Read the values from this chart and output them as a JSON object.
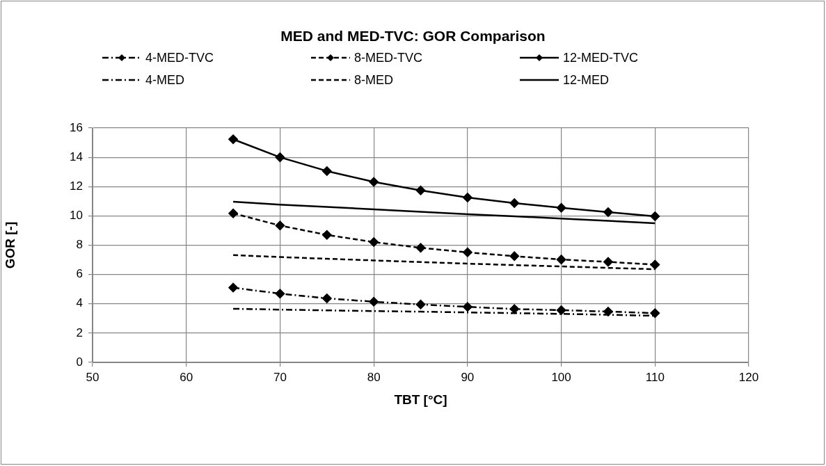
{
  "chart_data": {
    "type": "line",
    "title": "MED and MED-TVC: GOR Comparison",
    "xlabel": "TBT [°C]",
    "ylabel": "GOR [-]",
    "x": [
      65,
      70,
      75,
      80,
      85,
      90,
      95,
      100,
      105,
      110
    ],
    "series": [
      {
        "name": "4-MED-TVC",
        "color": "#000000",
        "line_style": "dashdot",
        "marker": "diamond",
        "values": [
          5.1,
          4.69,
          4.37,
          4.14,
          3.95,
          3.79,
          3.64,
          3.56,
          3.47,
          3.36
        ]
      },
      {
        "name": "8-MED-TVC",
        "color": "#000000",
        "line_style": "dashed",
        "marker": "diamond",
        "values": [
          10.17,
          9.34,
          8.7,
          8.21,
          7.82,
          7.51,
          7.25,
          7.02,
          6.86,
          6.67
        ]
      },
      {
        "name": "12-MED-TVC",
        "color": "#000000",
        "line_style": "solid",
        "marker": "diamond",
        "values": [
          15.23,
          14.0,
          13.06,
          12.32,
          11.74,
          11.25,
          10.87,
          10.55,
          10.26,
          9.97
        ]
      },
      {
        "name": "4-MED",
        "color": "#000000",
        "line_style": "dashdot",
        "marker": "none",
        "values": [
          3.66,
          3.6,
          3.55,
          3.5,
          3.46,
          3.41,
          3.36,
          3.31,
          3.25,
          3.18
        ]
      },
      {
        "name": "8-MED",
        "color": "#000000",
        "line_style": "dashed",
        "marker": "none",
        "values": [
          7.32,
          7.19,
          7.07,
          6.96,
          6.85,
          6.74,
          6.64,
          6.55,
          6.45,
          6.36
        ]
      },
      {
        "name": "12-MED",
        "color": "#000000",
        "line_style": "solid",
        "marker": "none",
        "values": [
          10.97,
          10.77,
          10.61,
          10.45,
          10.28,
          10.11,
          9.97,
          9.82,
          9.66,
          9.5
        ]
      }
    ],
    "xlim": [
      50,
      120
    ],
    "xticks": [
      50,
      60,
      70,
      80,
      90,
      100,
      110,
      120
    ],
    "ylim": [
      0,
      16
    ],
    "yticks": [
      0,
      2,
      4,
      6,
      8,
      10,
      12,
      14,
      16
    ],
    "grid": true,
    "legend": "top"
  }
}
